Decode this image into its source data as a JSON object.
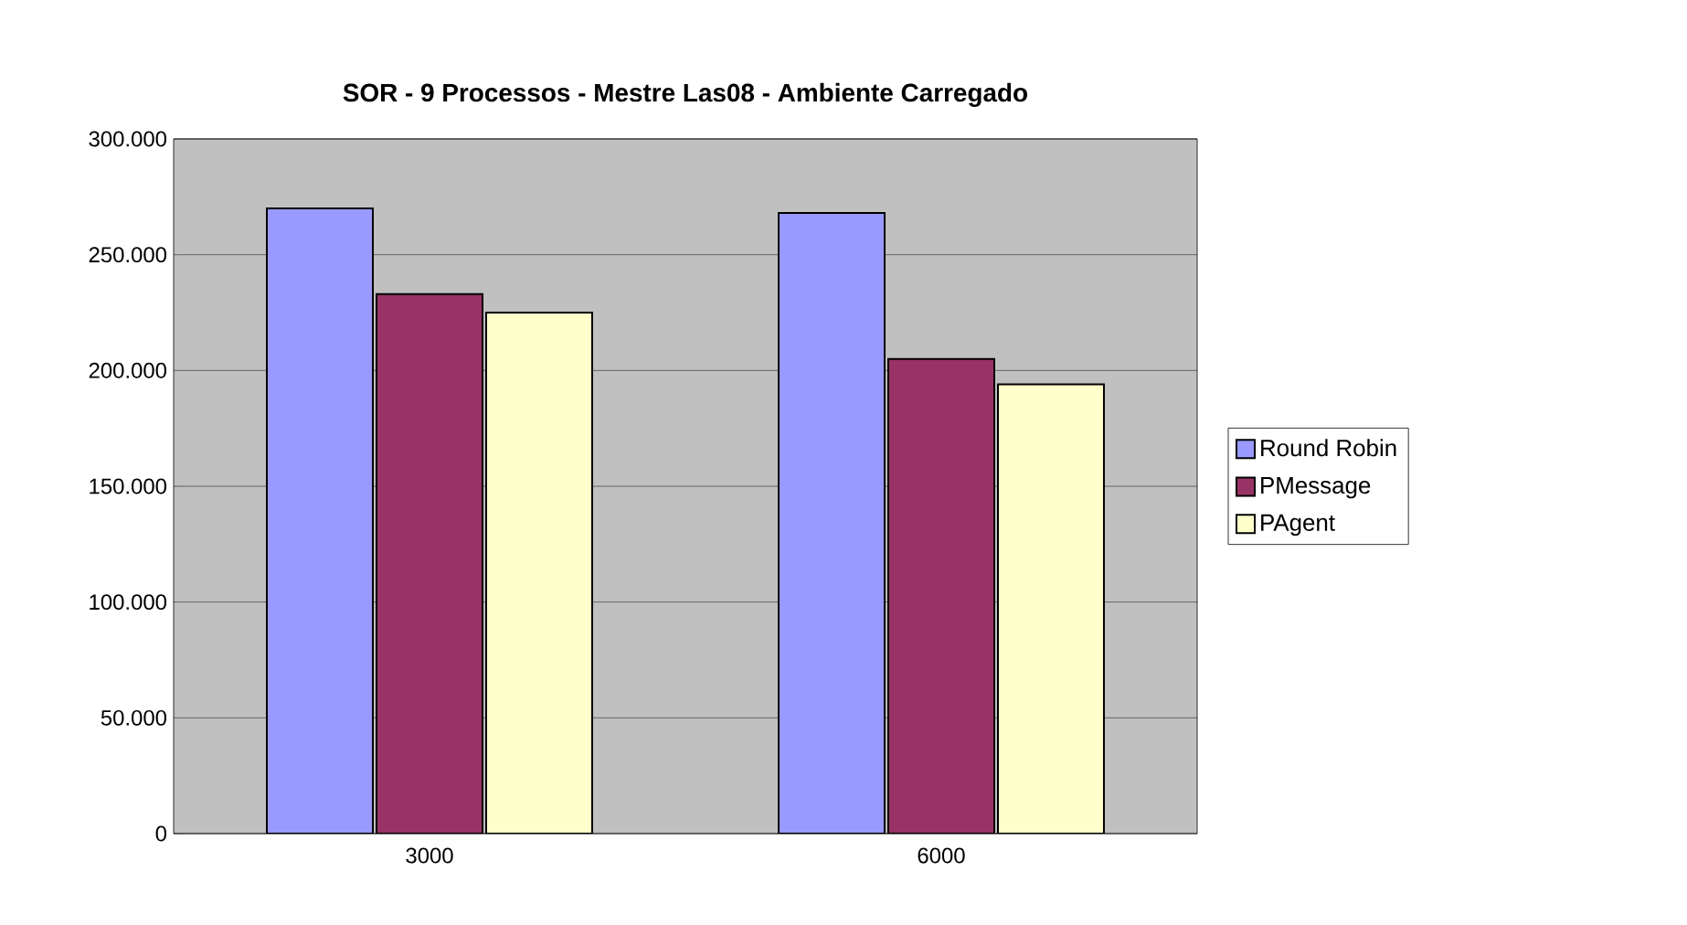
{
  "chart_data": {
    "type": "bar",
    "title": "SOR - 9 Processos - Mestre Las08 - Ambiente Carregado",
    "categories": [
      "3000",
      "6000"
    ],
    "series": [
      {
        "name": "Round Robin",
        "color": "#9999ff",
        "values": [
          270000,
          268000
        ]
      },
      {
        "name": "PMessage",
        "color": "#993366",
        "values": [
          233000,
          205000
        ]
      },
      {
        "name": "PAgent",
        "color": "#ffffcc",
        "values": [
          225000,
          194000
        ]
      }
    ],
    "ylim": [
      0,
      300000
    ],
    "yticks": [
      {
        "value": 0,
        "label": "0"
      },
      {
        "value": 50000,
        "label": "50.000"
      },
      {
        "value": 100000,
        "label": "100.000"
      },
      {
        "value": 150000,
        "label": "150.000"
      },
      {
        "value": 200000,
        "label": "200.000"
      },
      {
        "value": 250000,
        "label": "250.000"
      },
      {
        "value": 300000,
        "label": "300.000"
      }
    ],
    "grid": "y",
    "legend": "right"
  }
}
